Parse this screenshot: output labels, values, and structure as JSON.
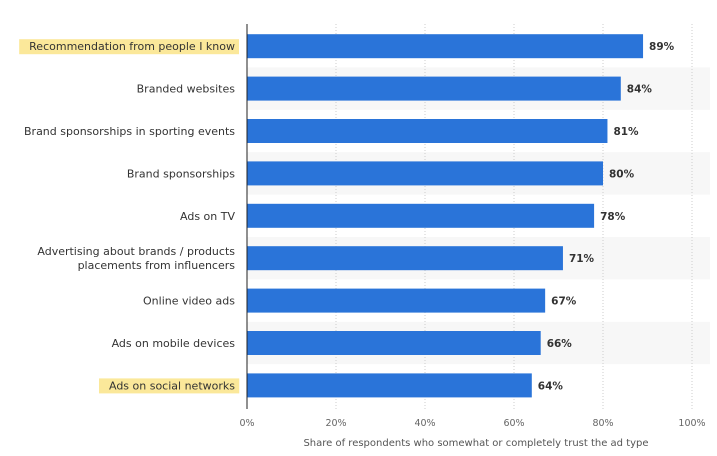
{
  "chart_data": {
    "type": "bar",
    "orientation": "horizontal",
    "categories": [
      "Recommendation from people I know",
      "Branded websites",
      "Brand sponsorships in sporting events",
      "Brand sponsorships",
      "Ads on TV",
      "Advertising about brands / products placements from influencers",
      "Online video ads",
      "Ads on mobile devices",
      "Ads on social networks"
    ],
    "category_lines": [
      [
        "Recommendation from people I know"
      ],
      [
        "Branded websites"
      ],
      [
        "Brand sponsorships in sporting events"
      ],
      [
        "Brand sponsorships"
      ],
      [
        "Ads on TV"
      ],
      [
        "Advertising about brands / products",
        "placements from influencers"
      ],
      [
        "Online video ads"
      ],
      [
        "Ads on mobile devices"
      ],
      [
        "Ads on social networks"
      ]
    ],
    "values": [
      89,
      84,
      81,
      80,
      78,
      71,
      67,
      66,
      64
    ],
    "value_labels": [
      "89%",
      "84%",
      "81%",
      "80%",
      "78%",
      "71%",
      "67%",
      "66%",
      "64%"
    ],
    "highlighted": [
      true,
      false,
      false,
      false,
      false,
      false,
      false,
      false,
      true
    ],
    "xlim": [
      0,
      100
    ],
    "xticks": [
      0,
      20,
      40,
      60,
      80,
      100
    ],
    "xtick_labels": [
      "0%",
      "20%",
      "40%",
      "60%",
      "80%",
      "100%"
    ],
    "xlabel": "Share of respondents who somewhat or completely trust the ad type",
    "title": "",
    "grid": true,
    "colors": {
      "bar": "#2a74d9",
      "highlight": "#fbe89a",
      "band": "#f7f7f7",
      "grid": "#cccccc",
      "axis": "#222222"
    }
  }
}
